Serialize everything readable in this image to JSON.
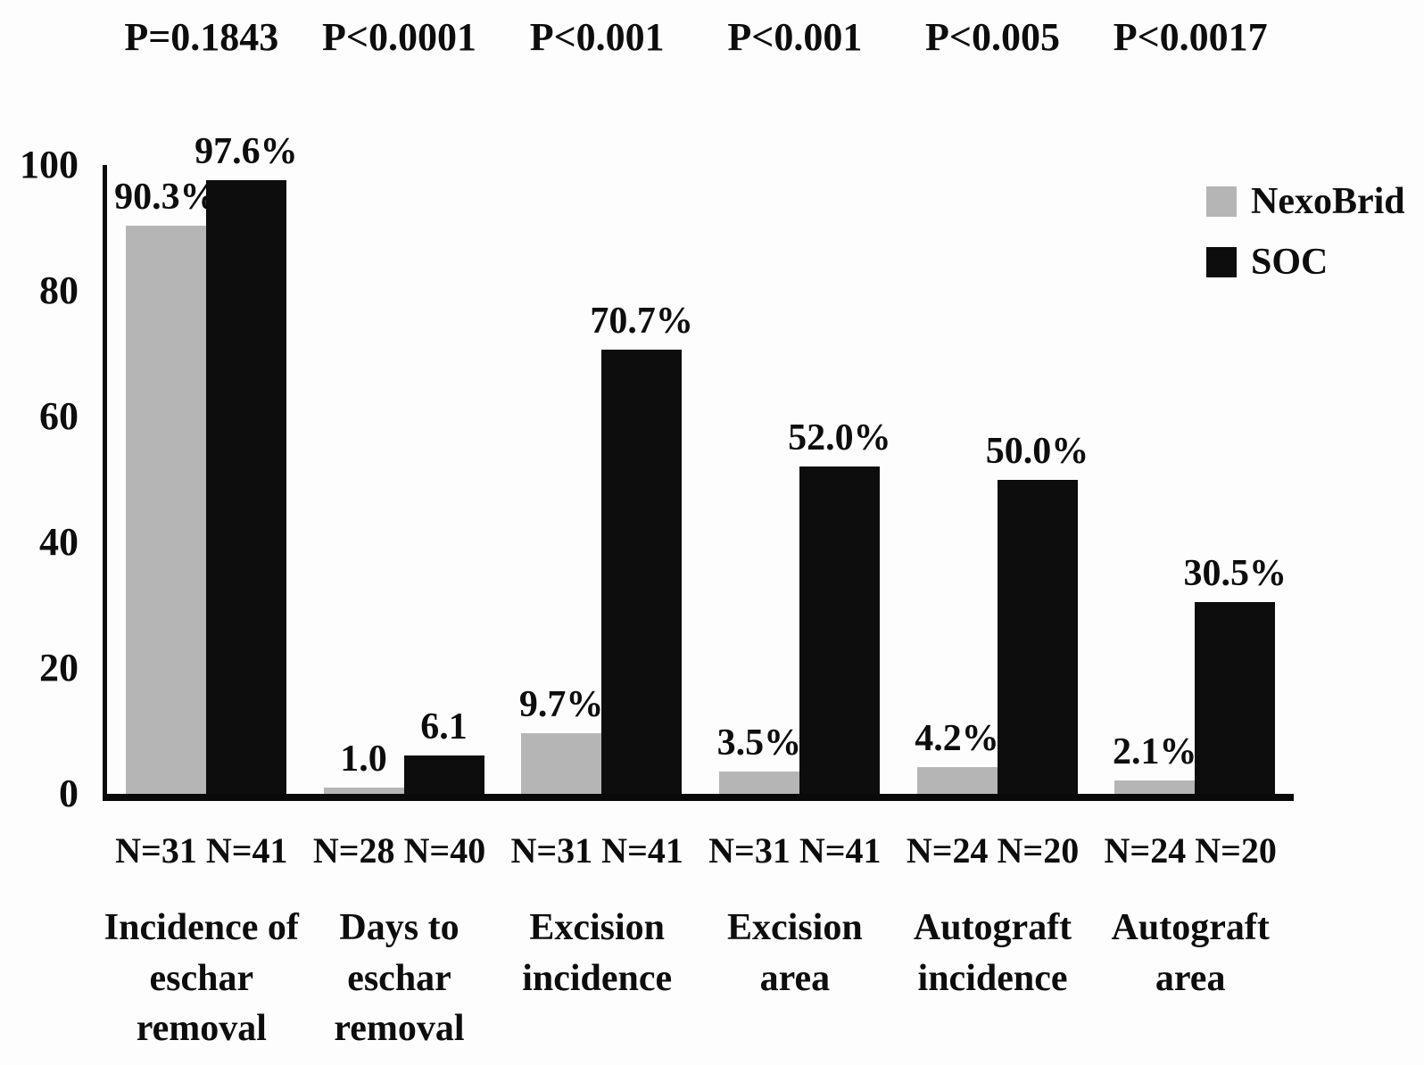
{
  "figure": {
    "background": "#fdfdfd",
    "axis_color": "#0a0a0a"
  },
  "legend": {
    "items": [
      {
        "label": "NexoBrid",
        "color": "#b5b5b5"
      },
      {
        "label": "SOC",
        "color": "#0d0d0d"
      }
    ]
  },
  "chart_data": {
    "type": "bar",
    "title": "",
    "xlabel": "",
    "ylabel": "",
    "ylim": [
      0,
      100
    ],
    "yticks": [
      0,
      20,
      40,
      60,
      80,
      100
    ],
    "grid": false,
    "legend_position": "top-right",
    "categories": [
      "Incidence of eschar removal",
      "Days to eschar removal",
      "Excision incidence",
      "Excision area",
      "Autograft incidence",
      "Autograft area"
    ],
    "series": [
      {
        "name": "NexoBrid",
        "color": "#b5b5b5",
        "values": [
          90.3,
          1.0,
          9.7,
          3.5,
          4.2,
          2.1
        ]
      },
      {
        "name": "SOC",
        "color": "#0d0d0d",
        "values": [
          97.6,
          6.1,
          70.7,
          52.0,
          50.0,
          30.5
        ]
      }
    ],
    "groups": [
      {
        "category_lines": [
          "Incidence of",
          "eschar removal"
        ],
        "p_value": "P=0.1843",
        "n_label": "N=31 N=41",
        "bars": [
          {
            "series": "NexoBrid",
            "value": 90.3,
            "label": "90.3%"
          },
          {
            "series": "SOC",
            "value": 97.6,
            "label": "97.6%"
          }
        ]
      },
      {
        "category_lines": [
          "Days to",
          "eschar removal"
        ],
        "p_value": "P<0.0001",
        "n_label": "N=28 N=40",
        "bars": [
          {
            "series": "NexoBrid",
            "value": 1.0,
            "label": "1.0"
          },
          {
            "series": "SOC",
            "value": 6.1,
            "label": "6.1"
          }
        ]
      },
      {
        "category_lines": [
          "Excision",
          "incidence"
        ],
        "p_value": "P<0.001",
        "n_label": "N=31 N=41",
        "bars": [
          {
            "series": "NexoBrid",
            "value": 9.7,
            "label": "9.7%"
          },
          {
            "series": "SOC",
            "value": 70.7,
            "label": "70.7%"
          }
        ]
      },
      {
        "category_lines": [
          "Excision",
          "area"
        ],
        "p_value": "P<0.001",
        "n_label": "N=31 N=41",
        "bars": [
          {
            "series": "NexoBrid",
            "value": 3.5,
            "label": "3.5%"
          },
          {
            "series": "SOC",
            "value": 52.0,
            "label": "52.0%"
          }
        ]
      },
      {
        "category_lines": [
          "Autograft",
          "incidence"
        ],
        "p_value": "P<0.005",
        "n_label": "N=24 N=20",
        "bars": [
          {
            "series": "NexoBrid",
            "value": 4.2,
            "label": "4.2%"
          },
          {
            "series": "SOC",
            "value": 50.0,
            "label": "50.0%"
          }
        ]
      },
      {
        "category_lines": [
          "Autograft",
          "area"
        ],
        "p_value": "P<0.0017",
        "n_label": "N=24 N=20",
        "bars": [
          {
            "series": "NexoBrid",
            "value": 2.1,
            "label": "2.1%"
          },
          {
            "series": "SOC",
            "value": 30.5,
            "label": "30.5%"
          }
        ]
      }
    ]
  }
}
